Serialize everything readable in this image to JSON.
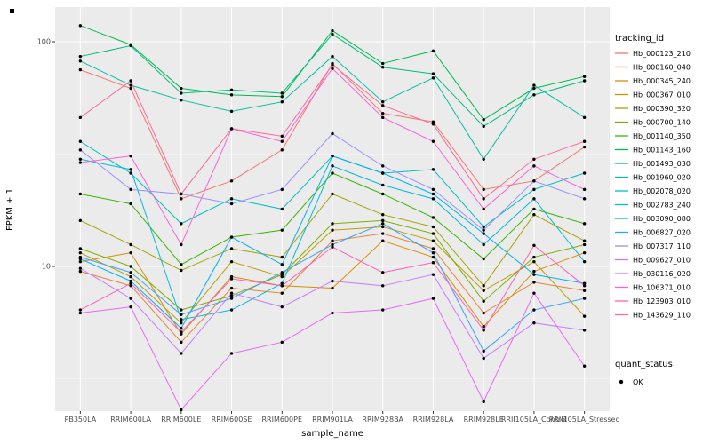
{
  "figure": {
    "y_axis_label": "FPKM + 1",
    "x_axis_label": "sample_name",
    "legend_title": "tracking_id",
    "quant_legend_title": "quant_status",
    "quant_legend_item": "OK",
    "panel_background": "#EBEBEB",
    "grid_color": "#FFFFFF",
    "tick_label_color": "#4D4D4D",
    "point_color": "#000000"
  },
  "chart_data": {
    "type": "line",
    "x_type": "categorical",
    "y_scale": "log10",
    "ylim": [
      2.2,
      145
    ],
    "grid": true,
    "legend_position": "right",
    "title": "",
    "xlabel": "sample_name",
    "ylabel": "FPKM + 1",
    "panel_bg": "#EBEBEB",
    "point_color": "#000000",
    "y_ticks": [
      {
        "label": "100",
        "value": 100
      },
      {
        "label": "10",
        "value": 10
      }
    ],
    "y_major_gridlines": [
      10,
      100
    ],
    "y_minor_gridlines": [
      3.162,
      31.62
    ],
    "categories": [
      "PB350LA",
      "RRIM600LA",
      "RRIM600LE",
      "RRIM600SE",
      "RRIM600PE",
      "RRIM901LA",
      "RRIM928BA",
      "RRIM928LA",
      "RRIM928LE",
      "RRII105LA_Control",
      "RRII105LA_Stressed"
    ],
    "series": [
      {
        "name": "Hb_000123_210",
        "color": "#F8766D",
        "values": [
          75,
          62,
          20,
          24,
          33,
          80,
          48,
          44,
          22,
          24,
          34
        ]
      },
      {
        "name": "Hb_000160_040",
        "color": "#EA8331",
        "values": [
          9.5,
          8.2,
          4.6,
          8.0,
          7.6,
          13,
          14,
          12,
          6.2,
          8.5,
          7.8
        ]
      },
      {
        "name": "Hb_000345_240",
        "color": "#D89000",
        "values": [
          10.5,
          11.5,
          5.0,
          9.0,
          8.2,
          8.0,
          13,
          11,
          5.4,
          9.5,
          11.5
        ]
      },
      {
        "name": "Hb_000367_010",
        "color": "#C09B00",
        "values": [
          11.5,
          9.0,
          5.6,
          10.5,
          9.0,
          14.5,
          15,
          13,
          7.8,
          10.5,
          6.0
        ]
      },
      {
        "name": "Hb_000390_320",
        "color": "#A3A500",
        "values": [
          16,
          12.5,
          9.6,
          12,
          11,
          21,
          17,
          15,
          8.2,
          17,
          13
        ]
      },
      {
        "name": "Hb_000700_140",
        "color": "#7CAE00",
        "values": [
          12,
          10,
          6.4,
          7.4,
          9.2,
          15.5,
          16,
          14,
          7.0,
          11,
          12.5
        ]
      },
      {
        "name": "Hb_001140_350",
        "color": "#39B600",
        "values": [
          21,
          19,
          10.2,
          13.5,
          14.5,
          26,
          21,
          16.5,
          10.8,
          18,
          15.5
        ]
      },
      {
        "name": "Hb_001143_160",
        "color": "#00BB4E",
        "values": [
          118,
          97,
          62,
          58,
          57,
          112,
          80,
          91,
          45,
          62,
          70
        ]
      },
      {
        "name": "Hb_001493_030",
        "color": "#00BF7D",
        "values": [
          86,
          96,
          59,
          61,
          59,
          108,
          77,
          72,
          42,
          58,
          67
        ]
      },
      {
        "name": "Hb_001960_020",
        "color": "#00C1A3",
        "values": [
          82,
          64,
          55,
          49,
          54,
          86,
          54,
          69,
          30,
          64,
          46
        ]
      },
      {
        "name": "Hb_002078_020",
        "color": "#00BFC4",
        "values": [
          36,
          26,
          15.5,
          20,
          18,
          31,
          26,
          27,
          15,
          22,
          26
        ]
      },
      {
        "name": "Hb_002783_240",
        "color": "#00BAE0",
        "values": [
          30,
          27,
          5.8,
          6.4,
          8.4,
          28,
          23,
          20,
          12.5,
          20,
          10.5
        ]
      },
      {
        "name": "Hb_003090_080",
        "color": "#00B0F6",
        "values": [
          10.8,
          8.6,
          5.3,
          13.5,
          10.2,
          31,
          26,
          21,
          14,
          9.2,
          8.4
        ]
      },
      {
        "name": "Hb_006827_020",
        "color": "#35A2FF",
        "values": [
          11,
          9.4,
          6.1,
          7.2,
          9.4,
          12.5,
          15.5,
          11.5,
          4.2,
          6.4,
          7.2
        ]
      },
      {
        "name": "Hb_007317_110",
        "color": "#9590FF",
        "values": [
          33,
          22,
          21,
          19,
          22,
          39,
          28,
          22,
          14.5,
          24,
          20
        ]
      },
      {
        "name": "Hb_009627_010",
        "color": "#C77CFF",
        "values": [
          9.8,
          7.2,
          4.1,
          7.6,
          6.6,
          8.6,
          8.2,
          9.2,
          3.9,
          5.6,
          5.2
        ]
      },
      {
        "name": "Hb_030116_020",
        "color": "#E76BF3",
        "values": [
          6.2,
          6.6,
          2.3,
          4.1,
          4.6,
          6.2,
          6.4,
          7.2,
          2.5,
          7.6,
          3.6
        ]
      },
      {
        "name": "Hb_106371_010",
        "color": "#FA62DB",
        "values": [
          29,
          31,
          12.5,
          41,
          36,
          76,
          46,
          36,
          18,
          28,
          22
        ]
      },
      {
        "name": "Hb_123903_010",
        "color": "#FF62BC",
        "values": [
          6.4,
          8.4,
          5.1,
          8.8,
          8.2,
          12.2,
          9.4,
          10.4,
          5.2,
          12.4,
          8.2
        ]
      },
      {
        "name": "Hb_143629_110",
        "color": "#FF6A98",
        "values": [
          46,
          67,
          21,
          41,
          38,
          79,
          52,
          43,
          20,
          30,
          36
        ]
      }
    ]
  }
}
